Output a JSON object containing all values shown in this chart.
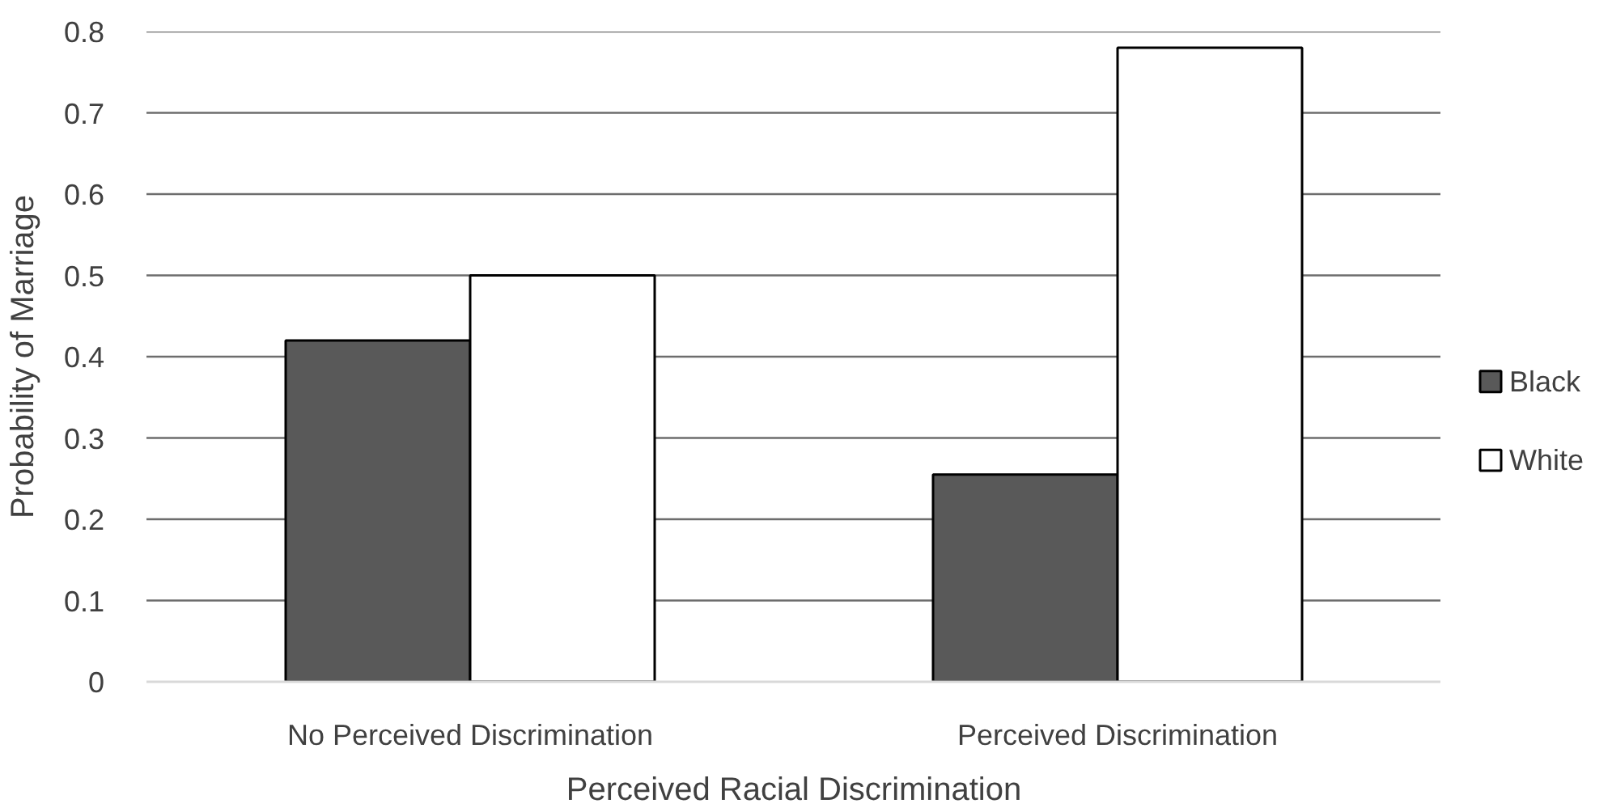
{
  "chart_data": {
    "type": "bar",
    "xlabel": "Perceived Racial Discrimination",
    "ylabel": "Probability of Marriage",
    "categories": [
      "No Perceived Discrimination",
      "Perceived Discrimination"
    ],
    "series": [
      {
        "name": "Black",
        "color": "#595959",
        "values": [
          0.42,
          0.255
        ]
      },
      {
        "name": "White",
        "color": "#ffffff",
        "values": [
          0.5,
          0.78
        ]
      }
    ],
    "ylim": [
      0,
      0.8
    ],
    "yticks": [
      0,
      0.1,
      0.2,
      0.3,
      0.4,
      0.5,
      0.6,
      0.7,
      0.8
    ],
    "grid": "y",
    "legend": "right"
  }
}
